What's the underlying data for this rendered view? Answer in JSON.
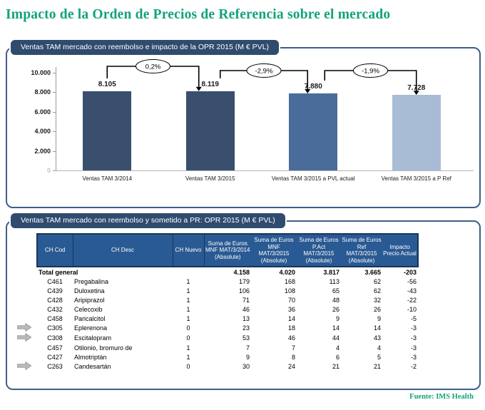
{
  "page": {
    "title": "Impacto de la Orden de Precios de Referencia sobre el mercado",
    "source": "Fuente: IMS Health"
  },
  "colors": {
    "accent_green": "#12A37B",
    "tab_navy": "#2F4B6E",
    "panel_border": "#3F5E87",
    "table_header_bg": "#2A5A93",
    "table_header_border": "#16365C",
    "arrow_gray": "#B9B9B9"
  },
  "chart_panel": {
    "header": "Ventas TAM mercado con reembolso e impacto de la OPR 2015 (M € PVL)"
  },
  "chart_data": {
    "type": "bar",
    "title": "Ventas TAM mercado con reembolso e impacto de la OPR 2015 (M € PVL)",
    "categories": [
      "Ventas TAM 3/2014",
      "Ventas TAM 3/2015",
      "Ventas TAM 3/2015 a PVL actual",
      "Ventas TAM 3/2015 a P Ref"
    ],
    "values": [
      8105,
      8119,
      7880,
      7728
    ],
    "value_labels": [
      "8.105",
      "8.119",
      "7.880",
      "7.728"
    ],
    "bar_colors": [
      "#394F6D",
      "#394F6D",
      "#4A6C9B",
      "#A9BCD6"
    ],
    "delta_labels": [
      "0,2%",
      "-2,9%",
      "-1,9%"
    ],
    "y_ticks": [
      {
        "label": "10.000",
        "value": 10000
      },
      {
        "label": "8.000",
        "value": 8000
      },
      {
        "label": "6.000",
        "value": 6000
      },
      {
        "label": "4.000",
        "value": 4000
      },
      {
        "label": "2.000",
        "value": 2000
      },
      {
        "label": "0",
        "value": 0
      }
    ],
    "ylim": [
      0,
      10000
    ],
    "grid": false,
    "legend": false
  },
  "table_panel": {
    "header": "Ventas TAM mercado con reembolso y sometido a PR: OPR 2015 (M € PVL)",
    "columns": [
      "CH Cod",
      "CH Desc",
      "CH Nuevo",
      "Suma de Euros MNF MAT/3/2014 (Absolute)",
      "Suma de Euros MNF MAT/3/2015 (Absolute)",
      "Suma de Euros P.Act MAT/3/2015 (Absolute)",
      "Suma de Euros Ref MAT/3/2015 (Absolute)",
      "Impacto Precio Actual"
    ],
    "total_row": {
      "label": "Total general",
      "nuevo": "",
      "v2014": "4.158",
      "v2015": "4.020",
      "pact": "3.817",
      "ref": "3.665",
      "impacto": "-203"
    },
    "rows": [
      {
        "arrow": false,
        "cod": "C461",
        "desc": "Pregabalina",
        "nuevo": "1",
        "v2014": "179",
        "v2015": "168",
        "pact": "113",
        "ref": "62",
        "impacto": "-56"
      },
      {
        "arrow": false,
        "cod": "C439",
        "desc": "Duloxetina",
        "nuevo": "1",
        "v2014": "106",
        "v2015": "108",
        "pact": "65",
        "ref": "62",
        "impacto": "-43"
      },
      {
        "arrow": false,
        "cod": "C428",
        "desc": "Aripiprazol",
        "nuevo": "1",
        "v2014": "71",
        "v2015": "70",
        "pact": "48",
        "ref": "32",
        "impacto": "-22"
      },
      {
        "arrow": false,
        "cod": "C432",
        "desc": "Celecoxib",
        "nuevo": "1",
        "v2014": "46",
        "v2015": "36",
        "pact": "26",
        "ref": "26",
        "impacto": "-10"
      },
      {
        "arrow": false,
        "cod": "C458",
        "desc": "Paricalcitol",
        "nuevo": "1",
        "v2014": "13",
        "v2015": "14",
        "pact": "9",
        "ref": "9",
        "impacto": "-5"
      },
      {
        "arrow": true,
        "cod": "C305",
        "desc": "Eplerenona",
        "nuevo": "0",
        "v2014": "23",
        "v2015": "18",
        "pact": "14",
        "ref": "14",
        "impacto": "-3"
      },
      {
        "arrow": true,
        "cod": "C308",
        "desc": "Escitalopram",
        "nuevo": "0",
        "v2014": "53",
        "v2015": "46",
        "pact": "44",
        "ref": "43",
        "impacto": "-3"
      },
      {
        "arrow": false,
        "cod": "C457",
        "desc": "Otilonio, bromuro de",
        "nuevo": "1",
        "v2014": "7",
        "v2015": "7",
        "pact": "4",
        "ref": "4",
        "impacto": "-3"
      },
      {
        "arrow": false,
        "cod": "C427",
        "desc": "Almotriptán",
        "nuevo": "1",
        "v2014": "9",
        "v2015": "8",
        "pact": "6",
        "ref": "5",
        "impacto": "-3"
      },
      {
        "arrow": true,
        "cod": "C263",
        "desc": "Candesartán",
        "nuevo": "0",
        "v2014": "30",
        "v2015": "24",
        "pact": "21",
        "ref": "21",
        "impacto": "-2"
      }
    ]
  }
}
